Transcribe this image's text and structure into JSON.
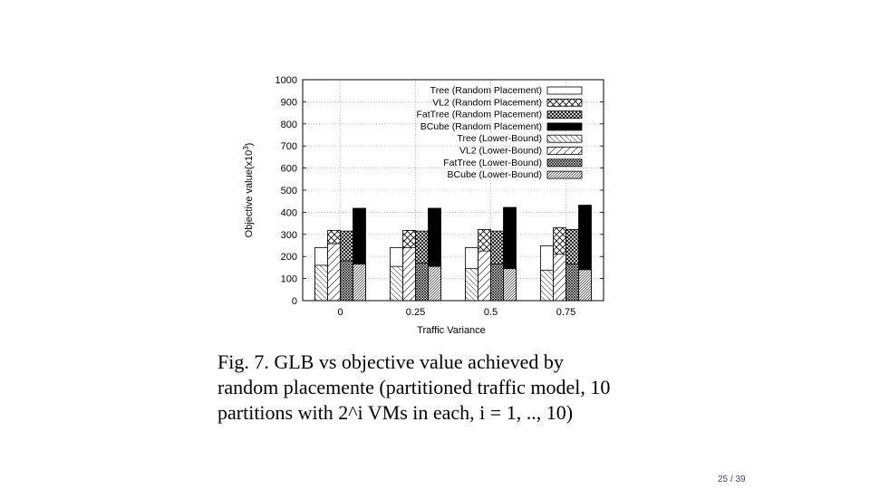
{
  "caption": {
    "line1": "Fig. 7.    GLB vs objective value achieved by",
    "line2": "random placemente (partitioned traffic model, 10",
    "line3": "partitions with 2^i VMs in each, i = 1, .., 10)"
  },
  "page_number": "25 / 39",
  "chart_data": {
    "type": "bar",
    "xlabel": "Traffic Variance",
    "ylabel": "Objective value(x10^3)",
    "ylim": [
      0,
      1000
    ],
    "yticks": [
      0,
      100,
      200,
      300,
      400,
      500,
      600,
      700,
      800,
      900,
      1000
    ],
    "grid": true,
    "legend_position": "top-right",
    "categories": [
      "0",
      "0.25",
      "0.5",
      "0.75"
    ],
    "series": [
      {
        "name": "Tree (Random Placement)",
        "values": [
          240,
          240,
          240,
          248
        ],
        "pattern": "white"
      },
      {
        "name": "VL2 (Random Placement)",
        "values": [
          318,
          318,
          322,
          330
        ],
        "pattern": "crosshatch"
      },
      {
        "name": "FatTree (Random Placement)",
        "values": [
          315,
          315,
          315,
          322
        ],
        "pattern": "densecross"
      },
      {
        "name": "BCube (Random Placement)",
        "values": [
          418,
          418,
          422,
          432
        ],
        "pattern": "black"
      },
      {
        "name": "Tree (Lower-Bound)",
        "values": [
          160,
          155,
          145,
          138
        ],
        "pattern": "backdiag"
      },
      {
        "name": "VL2 (Lower-Bound)",
        "values": [
          258,
          240,
          225,
          210
        ],
        "pattern": "fwddiag"
      },
      {
        "name": "FatTree (Lower-Bound)",
        "values": [
          180,
          170,
          165,
          165
        ],
        "pattern": "densediag"
      },
      {
        "name": "BCube (Lower-Bound)",
        "values": [
          165,
          155,
          145,
          140
        ],
        "pattern": "finediag"
      }
    ]
  }
}
